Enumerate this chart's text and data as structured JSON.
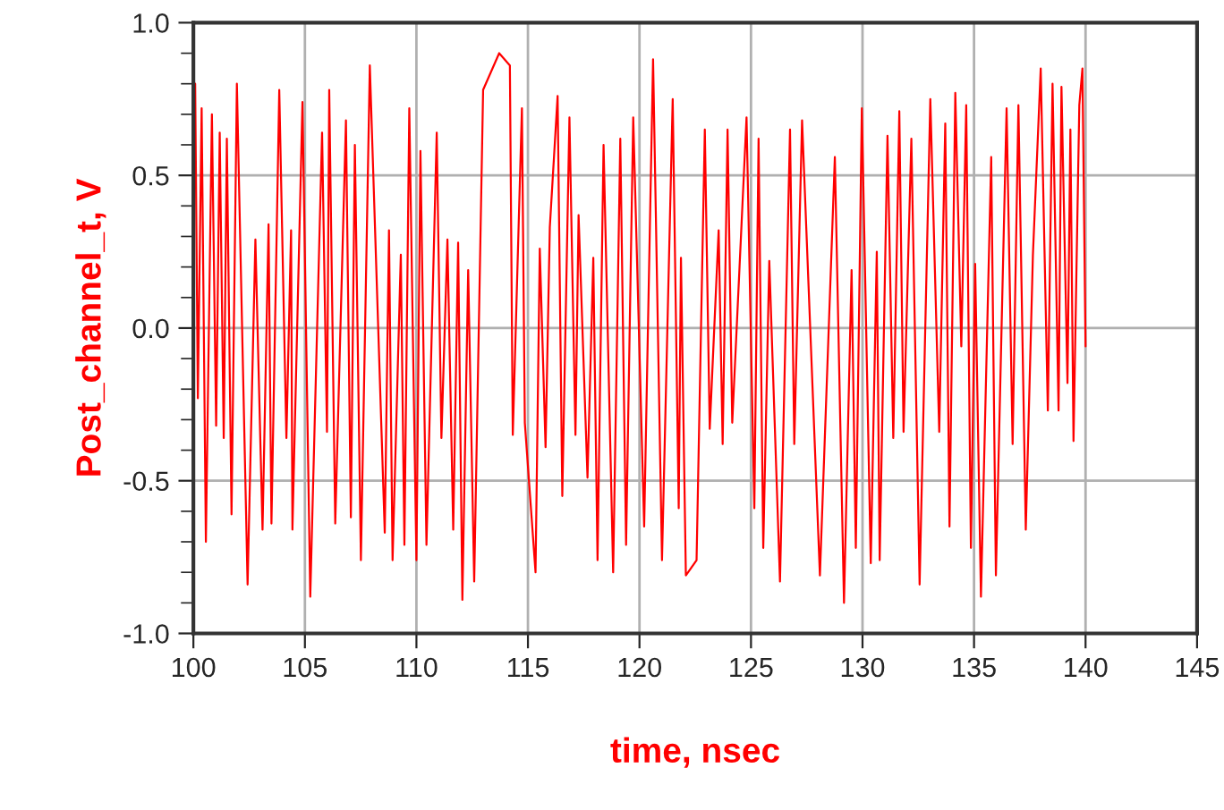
{
  "chart_data": {
    "type": "line",
    "xlabel": "time, nsec",
    "ylabel": "Post_channel_t, V",
    "xlim": [
      100,
      145
    ],
    "ylim": [
      -1.0,
      1.0
    ],
    "xticks": [
      100,
      105,
      110,
      115,
      120,
      125,
      130,
      135,
      140,
      145
    ],
    "yticks": [
      {
        "value": -1.0,
        "label": "-1.0"
      },
      {
        "value": -0.5,
        "label": "-0.5"
      },
      {
        "value": 0.0,
        "label": "0.0"
      },
      {
        "value": 0.5,
        "label": "0.5"
      },
      {
        "value": 1.0,
        "label": "1.0"
      }
    ],
    "grid": true,
    "legend": false,
    "marker": "none",
    "line_style": "solid",
    "series": [
      {
        "color": "#ff0000",
        "x": [
          100.08,
          100.2,
          100.37,
          100.56,
          100.83,
          101.02,
          101.18,
          101.36,
          101.5,
          101.71,
          101.95,
          102.43,
          102.78,
          103.1,
          103.37,
          103.5,
          103.85,
          104.17,
          104.38,
          104.44,
          104.89,
          105.24,
          105.77,
          105.99,
          106.09,
          106.36,
          106.84,
          107.06,
          107.24,
          107.51,
          107.91,
          108.58,
          108.77,
          108.93,
          109.3,
          109.46,
          109.68,
          110.0,
          110.18,
          110.45,
          110.91,
          111.12,
          111.39,
          111.65,
          111.87,
          112.06,
          112.32,
          112.59,
          112.99,
          113.71,
          114.19,
          114.32,
          114.73,
          114.86,
          115.34,
          115.53,
          115.79,
          115.98,
          116.33,
          116.54,
          116.86,
          117.13,
          117.27,
          117.67,
          117.93,
          118.12,
          118.39,
          118.82,
          119.14,
          119.4,
          119.72,
          120.21,
          120.61,
          121.01,
          121.49,
          121.76,
          121.86,
          122.08,
          122.56,
          122.93,
          123.15,
          123.55,
          123.73,
          123.95,
          124.16,
          124.8,
          125.15,
          125.34,
          125.55,
          125.82,
          126.3,
          126.75,
          126.94,
          127.29,
          128.09,
          128.76,
          129.17,
          129.51,
          129.7,
          129.97,
          130.37,
          130.64,
          130.77,
          131.12,
          131.38,
          131.65,
          131.84,
          132.19,
          132.56,
          133.04,
          133.44,
          133.71,
          133.9,
          134.16,
          134.43,
          134.65,
          134.86,
          135.05,
          135.31,
          135.77,
          135.98,
          136.46,
          136.73,
          136.99,
          137.32,
          137.64,
          137.99,
          138.31,
          138.52,
          138.79,
          138.92,
          139.19,
          139.32,
          139.46,
          139.72,
          139.86,
          140.0
        ],
        "values": [
          0.8,
          -0.23,
          0.72,
          -0.7,
          0.7,
          -0.32,
          0.64,
          -0.36,
          0.62,
          -0.61,
          0.8,
          -0.84,
          0.29,
          -0.66,
          0.34,
          -0.64,
          0.78,
          -0.36,
          0.32,
          -0.66,
          0.74,
          -0.88,
          0.64,
          -0.34,
          0.78,
          -0.64,
          0.68,
          -0.62,
          0.6,
          -0.76,
          0.86,
          -0.67,
          0.32,
          -0.76,
          0.24,
          -0.71,
          0.72,
          -0.76,
          0.58,
          -0.71,
          0.64,
          -0.36,
          0.29,
          -0.66,
          0.28,
          -0.89,
          0.19,
          -0.83,
          0.78,
          0.9,
          0.86,
          -0.35,
          0.72,
          -0.31,
          -0.8,
          0.26,
          -0.39,
          0.33,
          0.76,
          -0.55,
          0.69,
          -0.35,
          0.37,
          -0.49,
          0.23,
          -0.76,
          0.6,
          -0.8,
          0.62,
          -0.71,
          0.69,
          -0.65,
          0.88,
          -0.76,
          0.75,
          -0.59,
          0.23,
          -0.81,
          -0.76,
          0.65,
          -0.33,
          0.32,
          -0.38,
          0.65,
          -0.31,
          0.69,
          -0.59,
          0.62,
          -0.72,
          0.22,
          -0.83,
          0.65,
          -0.38,
          0.68,
          -0.81,
          0.56,
          -0.9,
          0.19,
          -0.72,
          0.72,
          -0.77,
          0.25,
          -0.76,
          0.63,
          -0.36,
          0.71,
          -0.34,
          0.62,
          -0.84,
          0.75,
          -0.34,
          0.67,
          -0.65,
          0.77,
          -0.06,
          0.73,
          -0.72,
          0.21,
          -0.88,
          0.56,
          -0.81,
          0.72,
          -0.38,
          0.73,
          -0.66,
          0.24,
          0.85,
          -0.27,
          0.8,
          -0.27,
          0.79,
          -0.18,
          0.65,
          -0.37,
          0.73,
          0.85,
          -0.06
        ]
      }
    ]
  }
}
